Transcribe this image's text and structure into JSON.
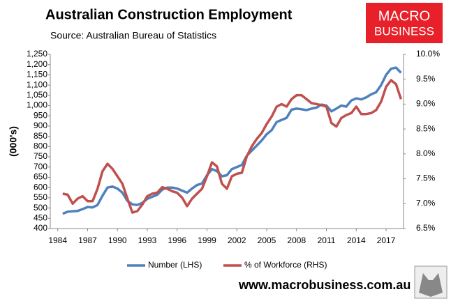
{
  "chart_data": {
    "type": "line",
    "title": "Australian Construction Employment",
    "subtitle": "Source: Australian Bureau of Statistics",
    "ylabel": "(000's)",
    "logo": [
      "MACRO",
      "BUSINESS"
    ],
    "website": "www.macrobusiness.com.au",
    "x": [
      1984.5,
      1985,
      1985.5,
      1986,
      1986.5,
      1987,
      1987.5,
      1988,
      1988.5,
      1989,
      1989.5,
      1990,
      1990.5,
      1991,
      1991.5,
      1992,
      1992.5,
      1993,
      1993.5,
      1994,
      1994.5,
      1995,
      1995.5,
      1996,
      1996.5,
      1997,
      1997.5,
      1998,
      1998.5,
      1999,
      1999.5,
      2000,
      2000.5,
      2001,
      2001.5,
      2002,
      2002.5,
      2003,
      2003.5,
      2004,
      2004.5,
      2005,
      2005.5,
      2006,
      2006.5,
      2007,
      2007.5,
      2008,
      2008.5,
      2009,
      2009.5,
      2010,
      2010.5,
      2011,
      2011.5,
      2012,
      2012.5,
      2013,
      2013.5,
      2014,
      2014.5,
      2015,
      2015.5,
      2016,
      2016.5,
      2017,
      2017.5,
      2018,
      2018.5
    ],
    "series": [
      {
        "name": "Number (LHS)",
        "color": "#4f81bd",
        "axis": "y",
        "values": [
          472,
          482,
          484,
          486,
          495,
          505,
          503,
          515,
          560,
          600,
          605,
          595,
          575,
          535,
          518,
          515,
          525,
          545,
          555,
          565,
          590,
          600,
          600,
          595,
          585,
          575,
          595,
          612,
          620,
          660,
          690,
          680,
          655,
          660,
          690,
          700,
          710,
          755,
          780,
          805,
          830,
          860,
          880,
          920,
          930,
          940,
          980,
          985,
          982,
          978,
          985,
          990,
          1005,
          1000,
          972,
          985,
          1000,
          995,
          1025,
          1035,
          1030,
          1040,
          1055,
          1065,
          1100,
          1150,
          1180,
          1185,
          1160
        ]
      },
      {
        "name": "% of Workforce (RHS)",
        "color": "#c0504d",
        "axis": "y2",
        "values": [
          7.2,
          7.18,
          7.0,
          7.1,
          7.15,
          7.05,
          7.05,
          7.3,
          7.65,
          7.8,
          7.7,
          7.55,
          7.4,
          7.1,
          6.82,
          6.85,
          6.98,
          7.15,
          7.2,
          7.22,
          7.33,
          7.3,
          7.25,
          7.22,
          7.12,
          6.95,
          7.1,
          7.2,
          7.3,
          7.55,
          7.83,
          7.75,
          7.4,
          7.3,
          7.55,
          7.6,
          7.62,
          7.95,
          8.15,
          8.3,
          8.42,
          8.6,
          8.75,
          8.95,
          9.0,
          8.95,
          9.1,
          9.18,
          9.18,
          9.1,
          9.02,
          9.0,
          8.98,
          8.95,
          8.62,
          8.55,
          8.72,
          8.78,
          8.82,
          8.95,
          8.8,
          8.8,
          8.82,
          8.88,
          9.05,
          9.35,
          9.48,
          9.4,
          9.1
        ]
      }
    ],
    "xlim": [
      1983.25,
      2018.75
    ],
    "xticks": [
      1984,
      1987,
      1990,
      1993,
      1996,
      1999,
      2002,
      2005,
      2008,
      2011,
      2014,
      2017
    ],
    "ylim": [
      400,
      1250
    ],
    "yticks": [
      400,
      450,
      500,
      550,
      600,
      650,
      700,
      750,
      800,
      850,
      900,
      950,
      {
        "value": 1000,
        "label": "1,000"
      },
      {
        "value": 1050,
        "label": "1,050"
      },
      {
        "value": 1100,
        "label": "1,100"
      },
      {
        "value": 1150,
        "label": "1,150"
      },
      {
        "value": 1200,
        "label": "1,200"
      },
      {
        "value": 1250,
        "label": "1,250"
      }
    ],
    "y2lim": [
      6.5,
      10
    ],
    "y2ticks": [
      {
        "value": 6.5,
        "label": "6.5%"
      },
      {
        "value": 7,
        "label": "7.0%"
      },
      {
        "value": 7.5,
        "label": "7.5%"
      },
      {
        "value": 8,
        "label": "8.0%"
      },
      {
        "value": 8.5,
        "label": "8.5%"
      },
      {
        "value": 9,
        "label": "9.0%"
      },
      {
        "value": 9.5,
        "label": "9.5%"
      },
      {
        "value": 10,
        "label": "10.0%"
      }
    ]
  }
}
